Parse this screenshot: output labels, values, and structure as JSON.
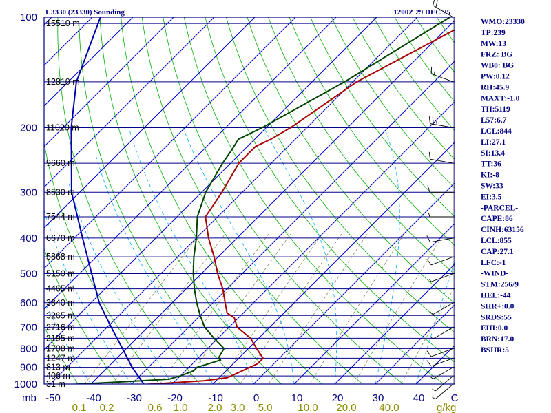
{
  "header": {
    "station": "U3330 (23330) Sounding",
    "datetime": "1200Z 29 DEC 25"
  },
  "colors": {
    "frame": "#000080",
    "isobar": "#00008b",
    "isotherm": "#0000cd",
    "dry_adiabat": "#00b000",
    "moist_adiabat": "#00aaff",
    "mixing_ratio": "#8b8b55",
    "temperature": "#aa0000",
    "dewpoint": "#004400",
    "parcel": "#0000aa"
  },
  "indices": [
    "WMO:23330",
    "TP:239",
    "MW:13",
    "FRZ: BG",
    "WB0: BG",
    "PW:0.12",
    "RH:45.9",
    "MAXT:-1.0",
    "TH:5119",
    "L57:6.7",
    "LCL:844",
    "LI:27.1",
    "SI:13.4",
    "TT:36",
    "KI:-8",
    "SW:33",
    "EI:3.5",
    "-PARCEL-",
    "CAPE:86",
    "CINH:63156",
    "LCL:855",
    "CAP:27.1",
    "LFC:-1",
    "-WIND-",
    "STM:256/9",
    "HEL:-44",
    "SHR+:0.0",
    "SRDS:55",
    "EHI:0.0",
    "BRN:17.0",
    "BSHR:5"
  ],
  "chart_data": {
    "type": "skew-t log-p sounding",
    "title": "U3330 (23330) Sounding",
    "pressure_axis": {
      "unit": "mb",
      "unit_label": "mb",
      "range": [
        1000,
        100
      ],
      "tick_labels": [
        "100",
        "200",
        "300",
        "400",
        "500",
        "600",
        "700",
        "800",
        "900",
        "1000"
      ]
    },
    "temperature_axis": {
      "unit": "C",
      "unit_label": "C",
      "tick_labels": [
        "-50",
        "-40",
        "-30",
        "-20",
        "-10",
        "0",
        "10",
        "20",
        "30",
        "40"
      ]
    },
    "mixing_ratio_axis": {
      "unit_label": "g/kg",
      "tick_labels": [
        "0.1",
        "0.2",
        "0.6",
        "1.0",
        "2.0",
        "3.0",
        "5.0",
        "10.0",
        "20.0",
        "40.0"
      ]
    },
    "height_levels": [
      {
        "p": 104,
        "label": "15510 m"
      },
      {
        "p": 150,
        "label": "12810 m"
      },
      {
        "p": 200,
        "label": "11020 m"
      },
      {
        "p": 250,
        "label": "9660 m"
      },
      {
        "p": 300,
        "label": "8530 m"
      },
      {
        "p": 350,
        "label": "7544 m"
      },
      {
        "p": 400,
        "label": "6670 m"
      },
      {
        "p": 450,
        "label": "5868 m"
      },
      {
        "p": 500,
        "label": "5150 m"
      },
      {
        "p": 550,
        "label": "4465 m"
      },
      {
        "p": 600,
        "label": "3840 m"
      },
      {
        "p": 650,
        "label": "3265 m"
      },
      {
        "p": 700,
        "label": "2716 m"
      },
      {
        "p": 750,
        "label": "2195 m"
      },
      {
        "p": 800,
        "label": "1708 m"
      },
      {
        "p": 850,
        "label": "1247 m"
      },
      {
        "p": 900,
        "label": "813 m"
      },
      {
        "p": 950,
        "label": "406 m"
      },
      {
        "p": 1000,
        "label": "31 m"
      }
    ],
    "series": [
      {
        "name": "Temperature",
        "points": [
          [
            1003,
            -27
          ],
          [
            980,
            -13
          ],
          [
            960,
            -8
          ],
          [
            940,
            -7
          ],
          [
            880,
            -4
          ],
          [
            850,
            -4
          ],
          [
            800,
            -8
          ],
          [
            750,
            -12
          ],
          [
            700,
            -18
          ],
          [
            660,
            -21
          ],
          [
            640,
            -24
          ],
          [
            600,
            -27
          ],
          [
            550,
            -31
          ],
          [
            500,
            -36
          ],
          [
            450,
            -41
          ],
          [
            400,
            -47
          ],
          [
            350,
            -53
          ],
          [
            300,
            -55
          ],
          [
            250,
            -58
          ],
          [
            225,
            -58
          ],
          [
            215,
            -56
          ],
          [
            200,
            -54
          ],
          [
            150,
            -49
          ],
          [
            100,
            -35
          ]
        ]
      },
      {
        "name": "Dewpoint",
        "points": [
          [
            1003,
            -45
          ],
          [
            985,
            -32
          ],
          [
            970,
            -22
          ],
          [
            950,
            -20
          ],
          [
            920,
            -18
          ],
          [
            900,
            -18
          ],
          [
            860,
            -14
          ],
          [
            850,
            -15
          ],
          [
            800,
            -16
          ],
          [
            750,
            -21
          ],
          [
            700,
            -26
          ],
          [
            650,
            -30
          ],
          [
            600,
            -34
          ],
          [
            550,
            -38
          ],
          [
            500,
            -42
          ],
          [
            450,
            -46
          ],
          [
            400,
            -50
          ],
          [
            350,
            -55
          ],
          [
            300,
            -59
          ],
          [
            250,
            -62
          ],
          [
            230,
            -63
          ],
          [
            215,
            -64
          ],
          [
            200,
            -61
          ],
          [
            150,
            -52
          ],
          [
            100,
            -42
          ]
        ]
      },
      {
        "name": "Parcel",
        "points": [
          [
            1000,
            -27
          ],
          [
            900,
            -34
          ],
          [
            800,
            -41
          ],
          [
            700,
            -49
          ],
          [
            600,
            -58
          ],
          [
            500,
            -67
          ],
          [
            400,
            -78
          ],
          [
            300,
            -92
          ],
          [
            200,
            -108
          ],
          [
            150,
            -118
          ],
          [
            100,
            -128
          ]
        ]
      }
    ],
    "wind_barbs": [
      {
        "p": 100,
        "dir": 300,
        "kt": 20
      },
      {
        "p": 150,
        "dir": 290,
        "kt": 15
      },
      {
        "p": 200,
        "dir": 280,
        "kt": 25
      },
      {
        "p": 250,
        "dir": 280,
        "kt": 10
      },
      {
        "p": 300,
        "dir": 270,
        "kt": 10
      },
      {
        "p": 350,
        "dir": 270,
        "kt": 5
      },
      {
        "p": 400,
        "dir": 260,
        "kt": 10
      },
      {
        "p": 450,
        "dir": 250,
        "kt": 10
      },
      {
        "p": 500,
        "dir": 250,
        "kt": 5
      },
      {
        "p": 600,
        "dir": 240,
        "kt": 5
      },
      {
        "p": 700,
        "dir": 240,
        "kt": 5
      },
      {
        "p": 800,
        "dir": 250,
        "kt": 10
      },
      {
        "p": 850,
        "dir": 250,
        "kt": 10
      },
      {
        "p": 900,
        "dir": 240,
        "kt": 5
      },
      {
        "p": 950,
        "dir": 230,
        "kt": 5
      },
      {
        "p": 1000,
        "dir": 230,
        "kt": 5
      }
    ],
    "isotherm_step_c": 10,
    "dry_adiabat_step_k": 10,
    "mixing_ratio_lines": [
      0.1,
      0.2,
      0.6,
      1.0,
      2.0,
      3.0,
      5.0,
      10.0,
      20.0,
      40.0
    ],
    "moist_adiabat_starts_c": [
      -40,
      -30,
      -20,
      -10,
      0,
      10,
      20,
      30,
      40
    ]
  }
}
